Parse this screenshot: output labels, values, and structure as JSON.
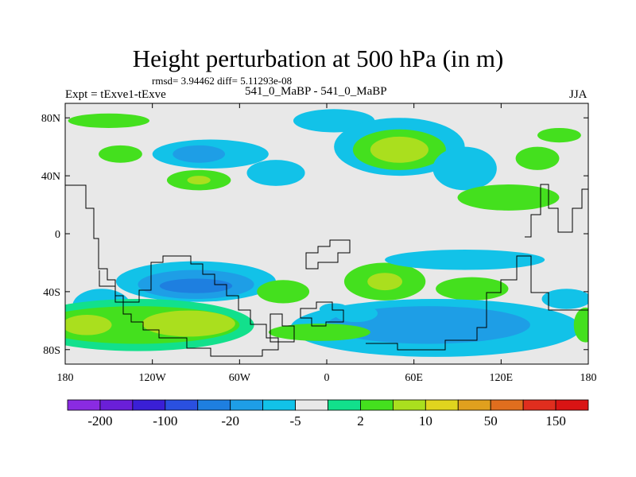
{
  "chart_data": {
    "type": "heatmap",
    "title": "Height perturbation at 500 hPa (in m)",
    "stats_text": "rmsd= 3.94462  diff= 5.11293e-08",
    "left_label": "Expt = tExve1-tExve",
    "center_label": "541_0_MaBP - 541_0_MaBP",
    "right_label": "JJA",
    "x_range": [
      -180,
      180
    ],
    "y_range": [
      -90,
      90
    ],
    "x_ticks": [
      {
        "value": -180,
        "label": "180"
      },
      {
        "value": -120,
        "label": "120W"
      },
      {
        "value": -60,
        "label": "60W"
      },
      {
        "value": 0,
        "label": "0"
      },
      {
        "value": 60,
        "label": "60E"
      },
      {
        "value": 120,
        "label": "120E"
      },
      {
        "value": 180,
        "label": "180"
      }
    ],
    "y_ticks": [
      {
        "value": 80,
        "label": "80N"
      },
      {
        "value": 40,
        "label": "40N"
      },
      {
        "value": 0,
        "label": "0"
      },
      {
        "value": -40,
        "label": "40S"
      },
      {
        "value": -80,
        "label": "80S"
      }
    ],
    "colorbar_colors": [
      "#8a2be2",
      "#6a1fd8",
      "#3a1fd6",
      "#2a50e0",
      "#1e7fe0",
      "#1e9ee6",
      "#12c2e8",
      "#e8e8e8",
      "#12e08c",
      "#44e01e",
      "#aadf1e",
      "#e0d41e",
      "#e0a01e",
      "#e06e1e",
      "#e02e1e",
      "#d91414"
    ],
    "colorbar_labels": [
      "-200",
      "-100",
      "-20",
      "-5",
      "2",
      "10",
      "50",
      "150"
    ],
    "regions": [
      {
        "lon": -150,
        "lat": 78,
        "rx": 28,
        "ry": 5,
        "level": 9
      },
      {
        "lon": -80,
        "lat": 55,
        "rx": 40,
        "ry": 10,
        "level": 6
      },
      {
        "lon": -88,
        "lat": 55,
        "rx": 18,
        "ry": 6,
        "level": 5
      },
      {
        "lon": -88,
        "lat": 37,
        "rx": 22,
        "ry": 7,
        "level": 9
      },
      {
        "lon": -88,
        "lat": 37,
        "rx": 8,
        "ry": 3,
        "level": 10
      },
      {
        "lon": -142,
        "lat": 55,
        "rx": 15,
        "ry": 6,
        "level": 9
      },
      {
        "lon": -35,
        "lat": 42,
        "rx": 20,
        "ry": 9,
        "level": 6
      },
      {
        "lon": 5,
        "lat": 78,
        "rx": 28,
        "ry": 8,
        "level": 6
      },
      {
        "lon": 50,
        "lat": 60,
        "rx": 45,
        "ry": 20,
        "level": 6
      },
      {
        "lon": 50,
        "lat": 58,
        "rx": 32,
        "ry": 14,
        "level": 9
      },
      {
        "lon": 50,
        "lat": 58,
        "rx": 20,
        "ry": 9,
        "level": 10
      },
      {
        "lon": 95,
        "lat": 45,
        "rx": 22,
        "ry": 15,
        "level": 6
      },
      {
        "lon": 145,
        "lat": 52,
        "rx": 15,
        "ry": 8,
        "level": 9
      },
      {
        "lon": 125,
        "lat": 25,
        "rx": 35,
        "ry": 9,
        "level": 9
      },
      {
        "lon": 160,
        "lat": 68,
        "rx": 15,
        "ry": 5,
        "level": 9
      },
      {
        "lon": -65,
        "lat": -32,
        "rx": 15,
        "ry": 4,
        "level": 9
      },
      {
        "lon": -90,
        "lat": -33,
        "rx": 55,
        "ry": 14,
        "level": 6
      },
      {
        "lon": -90,
        "lat": -35,
        "rx": 40,
        "ry": 10,
        "level": 5
      },
      {
        "lon": -90,
        "lat": -36,
        "rx": 25,
        "ry": 5,
        "level": 4
      },
      {
        "lon": -30,
        "lat": -40,
        "rx": 18,
        "ry": 8,
        "level": 9
      },
      {
        "lon": 5,
        "lat": -52,
        "rx": 10,
        "ry": 4,
        "level": 6
      },
      {
        "lon": 40,
        "lat": -33,
        "rx": 28,
        "ry": 13,
        "level": 9
      },
      {
        "lon": 40,
        "lat": -33,
        "rx": 12,
        "ry": 6,
        "level": 10
      },
      {
        "lon": 100,
        "lat": -38,
        "rx": 25,
        "ry": 8,
        "level": 9
      },
      {
        "lon": 95,
        "lat": -18,
        "rx": 55,
        "ry": 7,
        "level": 6
      },
      {
        "lon": -155,
        "lat": -50,
        "rx": 20,
        "ry": 12,
        "level": 6
      },
      {
        "lon": -130,
        "lat": -63,
        "rx": 80,
        "ry": 18,
        "level": 8
      },
      {
        "lon": -130,
        "lat": -63,
        "rx": 70,
        "ry": 13,
        "level": 9
      },
      {
        "lon": -165,
        "lat": -63,
        "rx": 17,
        "ry": 7,
        "level": 10
      },
      {
        "lon": -95,
        "lat": -62,
        "rx": 32,
        "ry": 9,
        "level": 10
      },
      {
        "lon": 75,
        "lat": -65,
        "rx": 100,
        "ry": 20,
        "level": 6
      },
      {
        "lon": 70,
        "lat": -63,
        "rx": 70,
        "ry": 13,
        "level": 5
      },
      {
        "lon": 20,
        "lat": -55,
        "rx": 15,
        "ry": 6,
        "level": 6
      },
      {
        "lon": 165,
        "lat": -45,
        "rx": 17,
        "ry": 7,
        "level": 6
      },
      {
        "lon": 178,
        "lat": -63,
        "rx": 8,
        "ry": 12,
        "level": 9
      },
      {
        "lon": -5,
        "lat": -68,
        "rx": 35,
        "ry": 6,
        "level": 9
      }
    ]
  }
}
